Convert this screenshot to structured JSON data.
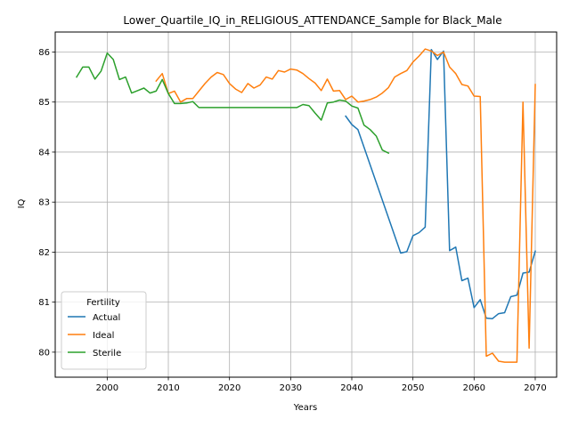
{
  "chart_data": {
    "type": "line",
    "title": "Lower_Quartile_IQ_in_RELIGIOUS_ATTENDANCE_Sample for Black_Male",
    "xlabel": "Years",
    "ylabel": "IQ",
    "xlim": [
      1991.5,
      2073.5
    ],
    "ylim": [
      79.5,
      86.4
    ],
    "xticks": [
      2000,
      2010,
      2020,
      2030,
      2040,
      2050,
      2060,
      2070
    ],
    "yticks": [
      80,
      81,
      82,
      83,
      84,
      85,
      86
    ],
    "grid": true,
    "legend": {
      "title": "Fertility",
      "placement": "lower-left"
    },
    "series": [
      {
        "name": "Actual",
        "color": "#1f77b4",
        "x": [
          2039,
          2040,
          2041,
          2048,
          2049,
          2050,
          2051,
          2052,
          2053,
          2054,
          2055,
          2056,
          2057,
          2058,
          2059,
          2060,
          2061,
          2062,
          2063,
          2064,
          2065,
          2066,
          2067,
          2068,
          2069,
          2070
        ],
        "y": [
          84.72,
          84.55,
          84.45,
          81.98,
          82.01,
          82.33,
          82.39,
          82.5,
          86.05,
          85.85,
          86.02,
          82.03,
          82.1,
          81.43,
          81.48,
          80.89,
          81.05,
          80.68,
          80.67,
          80.77,
          80.79,
          81.11,
          81.14,
          81.58,
          81.6,
          82.02
        ]
      },
      {
        "name": "Ideal",
        "color": "#ff7f0e",
        "x": [
          2008,
          2009,
          2010,
          2011,
          2012,
          2013,
          2014,
          2015,
          2016,
          2017,
          2018,
          2019,
          2020,
          2021,
          2022,
          2023,
          2024,
          2025,
          2026,
          2027,
          2028,
          2029,
          2030,
          2031,
          2032,
          2033,
          2034,
          2035,
          2036,
          2037,
          2038,
          2039,
          2040,
          2041,
          2042,
          2043,
          2044,
          2045,
          2046,
          2047,
          2048,
          2049,
          2050,
          2051,
          2052,
          2053,
          2054,
          2055,
          2056,
          2057,
          2058,
          2059,
          2060,
          2061,
          2062,
          2063,
          2064,
          2065,
          2066,
          2067,
          2068,
          2069,
          2070
        ],
        "y": [
          85.42,
          85.57,
          85.17,
          85.22,
          85.0,
          85.07,
          85.07,
          85.22,
          85.37,
          85.5,
          85.59,
          85.55,
          85.37,
          85.26,
          85.19,
          85.37,
          85.28,
          85.34,
          85.5,
          85.46,
          85.63,
          85.6,
          85.66,
          85.64,
          85.57,
          85.47,
          85.38,
          85.23,
          85.46,
          85.22,
          85.23,
          85.05,
          85.12,
          85.0,
          85.02,
          85.05,
          85.1,
          85.18,
          85.29,
          85.5,
          85.57,
          85.63,
          85.8,
          85.92,
          86.06,
          86.02,
          85.93,
          86.0,
          85.7,
          85.57,
          85.35,
          85.32,
          85.12,
          85.11,
          79.92,
          79.98,
          79.82,
          79.8,
          79.8,
          79.8,
          85.0,
          80.08,
          85.35
        ]
      },
      {
        "name": "Sterile",
        "color": "#2ca02c",
        "x": [
          1995,
          1996,
          1997,
          1998,
          1999,
          2000,
          2001,
          2002,
          2003,
          2004,
          2005,
          2006,
          2007,
          2008,
          2009,
          2010,
          2011,
          2012,
          2013,
          2014,
          2015,
          2016,
          2017,
          2018,
          2019,
          2020,
          2021,
          2022,
          2023,
          2024,
          2025,
          2026,
          2027,
          2028,
          2029,
          2030,
          2031,
          2032,
          2033,
          2034,
          2035,
          2036,
          2037,
          2038,
          2039,
          2040,
          2041,
          2042,
          2043,
          2044,
          2045,
          2046
        ],
        "y": [
          85.5,
          85.7,
          85.7,
          85.46,
          85.62,
          85.98,
          85.85,
          85.45,
          85.5,
          85.18,
          85.23,
          85.28,
          85.18,
          85.22,
          85.45,
          85.17,
          84.97,
          84.97,
          84.98,
          85.01,
          84.89,
          84.89,
          84.89,
          84.89,
          84.89,
          84.89,
          84.89,
          84.89,
          84.89,
          84.89,
          84.89,
          84.89,
          84.89,
          84.89,
          84.89,
          84.89,
          84.89,
          84.95,
          84.93,
          84.78,
          84.64,
          84.98,
          85.0,
          85.04,
          85.02,
          84.92,
          84.88,
          84.54,
          84.45,
          84.32,
          84.04,
          83.98
        ]
      }
    ]
  }
}
